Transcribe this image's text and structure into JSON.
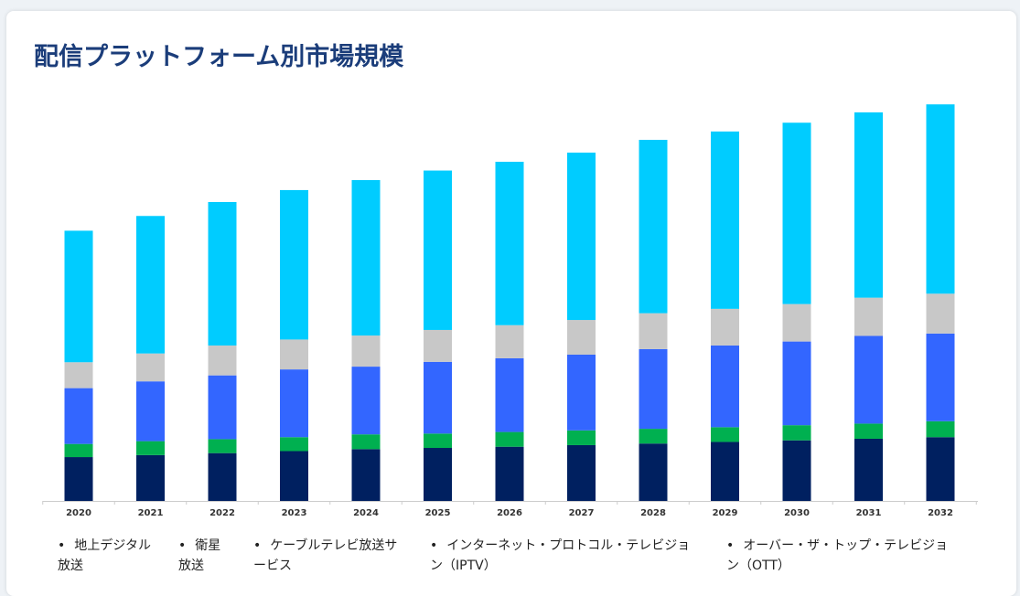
{
  "title": "配信プラットフォーム別市場規模",
  "chart_data": {
    "type": "bar",
    "stacked": true,
    "categories": [
      "2020",
      "2021",
      "2022",
      "2023",
      "2024",
      "2025",
      "2026",
      "2027",
      "2028",
      "2029",
      "2030",
      "2031",
      "2032"
    ],
    "series": [
      {
        "name": "地上デジタル放送",
        "color": "#002060",
        "values": [
          11,
          11.5,
          12,
          12.5,
          13,
          13.3,
          13.6,
          14,
          14.4,
          14.8,
          15.2,
          15.6,
          16
        ]
      },
      {
        "name": "衛星放送",
        "color": "#00b050",
        "values": [
          3.3,
          3.5,
          3.5,
          3.5,
          3.7,
          3.6,
          3.7,
          3.7,
          3.7,
          3.7,
          3.8,
          3.8,
          4.0
        ]
      },
      {
        "name": "ケーブルテレビ放送サービス",
        "color": "#3366ff",
        "values": [
          14,
          15,
          16,
          17,
          17,
          18,
          18.5,
          19,
          20,
          20.5,
          21,
          22,
          22
        ]
      },
      {
        "name": "インターネット・プロトコル・テレビジョン（IPTV）",
        "color": "#c8c8c8",
        "values": [
          6.5,
          7,
          7.5,
          7.5,
          7.8,
          8,
          8.3,
          8.7,
          9,
          9.2,
          9.4,
          9.6,
          10
        ]
      },
      {
        "name": "オーバー・ザ・トップ・テレビジョン（OTT）",
        "color": "#00ccff",
        "values": [
          33,
          34.5,
          36,
          37.5,
          39,
          40,
          41,
          42,
          43.5,
          44.5,
          45.5,
          46.5,
          47.5
        ]
      }
    ],
    "ylim": [
      0,
      100
    ],
    "grid": false
  },
  "legend_items": [
    {
      "line1": "地上デジタル",
      "line2": "放送"
    },
    {
      "line1": "衛星",
      "line2": "放送"
    },
    {
      "line1": "ケーブルテレビ放送サ",
      "line2": "ービス"
    },
    {
      "line1": "インターネット・プロトコル・テレビジョ",
      "line2": "ン（IPTV）"
    },
    {
      "line1": "オーバー・ザ・トップ・テレビジョ",
      "line2": "ン（OTT）"
    }
  ],
  "colors": {
    "title": "#1b3d7a",
    "axis": "#cccccc"
  }
}
